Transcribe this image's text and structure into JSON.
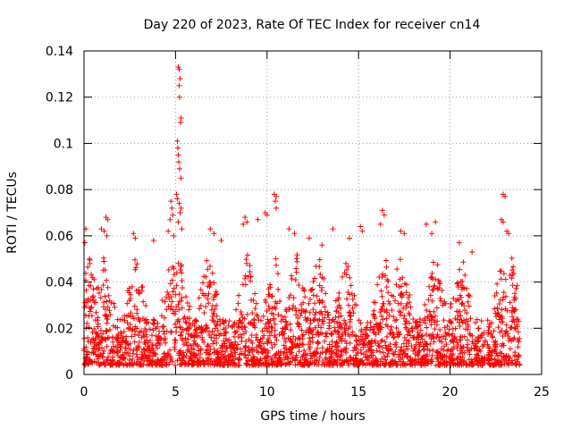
{
  "chart_data": {
    "type": "scatter",
    "title": "Day 220 of 2023, Rate Of TEC Index for receiver cn14",
    "xlabel": "GPS time / hours",
    "ylabel": "ROTI / TECUs",
    "xlim": [
      0,
      25
    ],
    "ylim": [
      0,
      0.14
    ],
    "x_ticks": [
      0,
      5,
      10,
      15,
      20,
      25
    ],
    "y_ticks": [
      0,
      0.02,
      0.04,
      0.06,
      0.08,
      0.1,
      0.12,
      0.14
    ],
    "x_tick_labels": [
      "0",
      "5",
      "10",
      "15",
      "20",
      "25"
    ],
    "y_tick_labels": [
      "0",
      "0.02",
      "0.04",
      "0.06",
      "0.08",
      "0.1",
      "0.12",
      "0.14"
    ],
    "grid": true,
    "legend": "none",
    "marker": "+",
    "series": [
      {
        "name": "ROTI",
        "color": "#ff0000",
        "points": [
          [
            5.15,
            0.133
          ],
          [
            5.2,
            0.132
          ],
          [
            5.25,
            0.128
          ],
          [
            5.2,
            0.125
          ],
          [
            5.22,
            0.12
          ],
          [
            5.3,
            0.111
          ],
          [
            5.28,
            0.109
          ],
          [
            5.1,
            0.101
          ],
          [
            5.12,
            0.098
          ],
          [
            5.15,
            0.095
          ],
          [
            5.18,
            0.092
          ],
          [
            5.22,
            0.089
          ],
          [
            5.3,
            0.085
          ],
          [
            5.05,
            0.078
          ],
          [
            5.1,
            0.076
          ],
          [
            5.2,
            0.074
          ],
          [
            5.3,
            0.072
          ],
          [
            5.25,
            0.07
          ],
          [
            5.15,
            0.066
          ],
          [
            5.35,
            0.063
          ],
          [
            4.75,
            0.075
          ],
          [
            4.8,
            0.072
          ],
          [
            4.85,
            0.069
          ],
          [
            4.7,
            0.067
          ],
          [
            4.6,
            0.062
          ],
          [
            4.9,
            0.06
          ],
          [
            10.4,
            0.078
          ],
          [
            10.5,
            0.077
          ],
          [
            10.45,
            0.075
          ],
          [
            10.5,
            0.072
          ],
          [
            9.9,
            0.07
          ],
          [
            10.0,
            0.069
          ],
          [
            8.8,
            0.068
          ],
          [
            8.9,
            0.066
          ],
          [
            8.7,
            0.065
          ],
          [
            9.5,
            0.067
          ],
          [
            11.2,
            0.063
          ],
          [
            11.5,
            0.061
          ],
          [
            22.9,
            0.078
          ],
          [
            23.0,
            0.077
          ],
          [
            22.8,
            0.067
          ],
          [
            22.9,
            0.066
          ],
          [
            23.1,
            0.062
          ],
          [
            23.2,
            0.061
          ],
          [
            1.2,
            0.068
          ],
          [
            1.3,
            0.067
          ],
          [
            1.1,
            0.062
          ],
          [
            1.25,
            0.06
          ],
          [
            0.95,
            0.063
          ],
          [
            0.1,
            0.063
          ],
          [
            0.05,
            0.057
          ],
          [
            16.3,
            0.071
          ],
          [
            16.4,
            0.069
          ],
          [
            16.2,
            0.065
          ],
          [
            17.3,
            0.062
          ],
          [
            17.5,
            0.061
          ],
          [
            18.7,
            0.065
          ],
          [
            19.2,
            0.066
          ],
          [
            19.0,
            0.061
          ],
          [
            20.5,
            0.057
          ],
          [
            21.2,
            0.053
          ],
          [
            2.7,
            0.061
          ],
          [
            2.8,
            0.059
          ],
          [
            6.9,
            0.063
          ],
          [
            7.1,
            0.061
          ],
          [
            7.5,
            0.058
          ],
          [
            13.6,
            0.063
          ],
          [
            14.5,
            0.059
          ],
          [
            15.1,
            0.064
          ],
          [
            15.2,
            0.062
          ],
          [
            3.8,
            0.058
          ],
          [
            12.3,
            0.059
          ],
          [
            13.0,
            0.056
          ]
        ]
      }
    ]
  }
}
